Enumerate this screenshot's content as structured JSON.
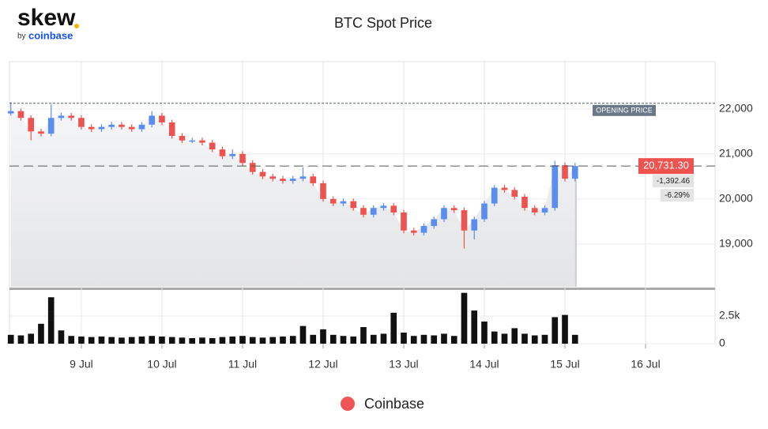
{
  "logo": {
    "name": "skew",
    "by": "by",
    "brand": "coinbase"
  },
  "chart_data": {
    "type": "candlestick",
    "title": "BTC Spot Price",
    "series": [
      {
        "name": "Coinbase",
        "color": "#f05454"
      }
    ],
    "up_color": "#5b8def",
    "down_color": "#ef5350",
    "volume_color": "#111111",
    "x": [
      3,
      6,
      9,
      12,
      15,
      18,
      21,
      24,
      27,
      30,
      33,
      36,
      39,
      42,
      45,
      48,
      51,
      54,
      57,
      60,
      63,
      66,
      69,
      72,
      75,
      78,
      81,
      84,
      87,
      90,
      93,
      96,
      99,
      102,
      105,
      108,
      111,
      114,
      117,
      120,
      123,
      126,
      129,
      132,
      135,
      138,
      141,
      144,
      147,
      150,
      153,
      156,
      159,
      162,
      165,
      168,
      171
    ],
    "open": [
      21900,
      21950,
      21800,
      21500,
      21450,
      21800,
      21850,
      21800,
      21600,
      21550,
      21600,
      21650,
      21600,
      21550,
      21650,
      21850,
      21700,
      21400,
      21300,
      21300,
      21250,
      21100,
      20950,
      21000,
      20800,
      20600,
      20500,
      20450,
      20400,
      20450,
      20500,
      20350,
      20000,
      19900,
      19950,
      19800,
      19650,
      19800,
      19850,
      19700,
      19300,
      19250,
      19400,
      19550,
      19800,
      19750,
      19300,
      19550,
      19900,
      20250,
      20200,
      20050,
      19800,
      19700,
      19800,
      20750,
      20450
    ],
    "high": [
      22150,
      22010,
      21860,
      21560,
      22100,
      21910,
      21910,
      21860,
      21660,
      21660,
      21710,
      21710,
      21660,
      21710,
      21950,
      21910,
      21760,
      21460,
      21360,
      21360,
      21310,
      21160,
      21100,
      21060,
      20860,
      20660,
      20560,
      20510,
      20510,
      20700,
      20560,
      20410,
      20060,
      20010,
      20010,
      19860,
      19860,
      19910,
      19910,
      19760,
      19360,
      19460,
      19610,
      19860,
      19860,
      19810,
      19610,
      19960,
      20310,
      20310,
      20260,
      20110,
      19860,
      19860,
      20850,
      20810,
      20800
    ],
    "low": [
      21850,
      21740,
      21300,
      21390,
      21390,
      21740,
      21740,
      21540,
      21490,
      21490,
      21540,
      21540,
      21490,
      21490,
      21590,
      21640,
      21340,
      21240,
      21240,
      21190,
      21040,
      20890,
      20890,
      20740,
      20540,
      20440,
      20390,
      20340,
      20340,
      20390,
      20290,
      19940,
      19840,
      19840,
      19740,
      19590,
      19590,
      19740,
      19640,
      19240,
      19190,
      19190,
      19340,
      19490,
      19690,
      18900,
      19100,
      19490,
      19840,
      20140,
      19990,
      19740,
      19640,
      19640,
      19740,
      20390,
      20390
    ],
    "close": [
      21950,
      21800,
      21500,
      21450,
      21800,
      21850,
      21800,
      21600,
      21550,
      21600,
      21650,
      21600,
      21550,
      21650,
      21850,
      21700,
      21400,
      21300,
      21300,
      21250,
      21100,
      20950,
      21000,
      20800,
      20600,
      20500,
      20450,
      20400,
      20450,
      20500,
      20350,
      20000,
      19900,
      19950,
      19800,
      19650,
      19800,
      19850,
      19700,
      19300,
      19250,
      19400,
      19550,
      19800,
      19750,
      19300,
      19550,
      19900,
      20250,
      20200,
      20050,
      19800,
      19700,
      19800,
      20750,
      20450,
      20731.3
    ],
    "volume": [
      800,
      750,
      900,
      1800,
      4200,
      1200,
      700,
      650,
      600,
      650,
      600,
      550,
      600,
      650,
      700,
      650,
      600,
      550,
      500,
      550,
      500,
      600,
      650,
      700,
      600,
      550,
      600,
      650,
      700,
      1600,
      800,
      1300,
      800,
      700,
      650,
      1500,
      800,
      900,
      2800,
      1000,
      700,
      800,
      750,
      900,
      700,
      4600,
      3000,
      2000,
      1100,
      900,
      1400,
      900,
      750,
      800,
      2400,
      2600,
      800
    ],
    "xlim": [
      2.6,
      212.7
    ],
    "xticks": [
      {
        "value": 24,
        "label": "9 Jul"
      },
      {
        "value": 48,
        "label": "10 Jul"
      },
      {
        "value": 72,
        "label": "11 Jul"
      },
      {
        "value": 96,
        "label": "12 Jul"
      },
      {
        "value": 120,
        "label": "13 Jul"
      },
      {
        "value": 144,
        "label": "14 Jul"
      },
      {
        "value": 168,
        "label": "15 Jul"
      },
      {
        "value": 192,
        "label": "16 Jul"
      }
    ],
    "ylim": [
      18050,
      23050
    ],
    "yticks": [
      {
        "value": 19000,
        "label": "19,000"
      },
      {
        "value": 20000,
        "label": "20,000"
      },
      {
        "value": 21000,
        "label": "21,000"
      },
      {
        "value": 22000,
        "label": "22,000"
      }
    ],
    "y2lim": [
      0,
      4790
    ],
    "y2ticks": [
      0,
      {
        "value": 2500,
        "label": "2.5k"
      }
    ],
    "opening_price": {
      "value": 22123.76,
      "label": "OPENING PRICE"
    },
    "last_price": {
      "value": 20731.3,
      "label": "20,731.30"
    },
    "change": {
      "value": -1392.46,
      "label": "-1,392.46"
    },
    "change_pct": {
      "value": -6.29,
      "label": "-6.29%"
    }
  }
}
